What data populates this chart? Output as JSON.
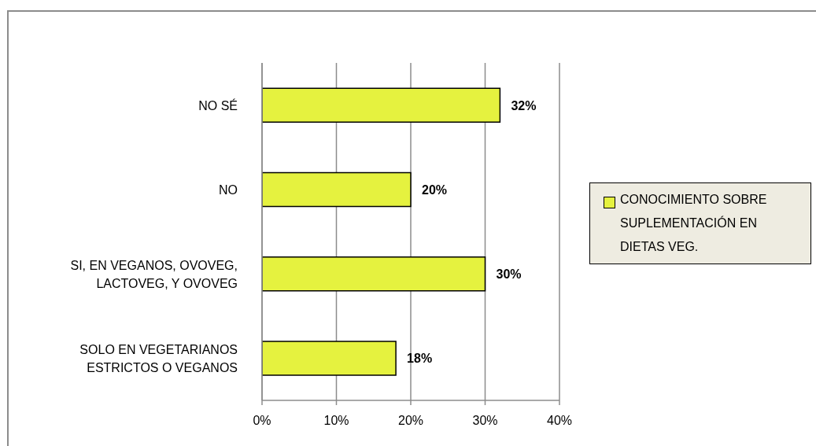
{
  "chart_data": {
    "type": "bar",
    "orientation": "horizontal",
    "categories": [
      "NO SÉ",
      "NO",
      "SI, EN VEGANOS, OVOVEG, LACTOVEG, Y OVOVEG",
      "SOLO EN VEGETARIANOS ESTRICTOS O VEGANOS"
    ],
    "series": [
      {
        "name": "CONOCIMIENTO SOBRE SUPLEMENTACIÓN EN DIETAS VEG.",
        "color": "#e5f23f",
        "values": [
          32,
          20,
          30,
          18
        ],
        "value_labels": [
          "32%",
          "20%",
          "30%",
          "18%"
        ]
      }
    ],
    "xlim": [
      0,
      40
    ],
    "xticks": [
      {
        "value": 0,
        "label": "0%"
      },
      {
        "value": 10,
        "label": "10%"
      },
      {
        "value": 20,
        "label": "20%"
      },
      {
        "value": 30,
        "label": "30%"
      },
      {
        "value": 40,
        "label": "40%"
      }
    ],
    "grid": "x",
    "legend": "right"
  }
}
